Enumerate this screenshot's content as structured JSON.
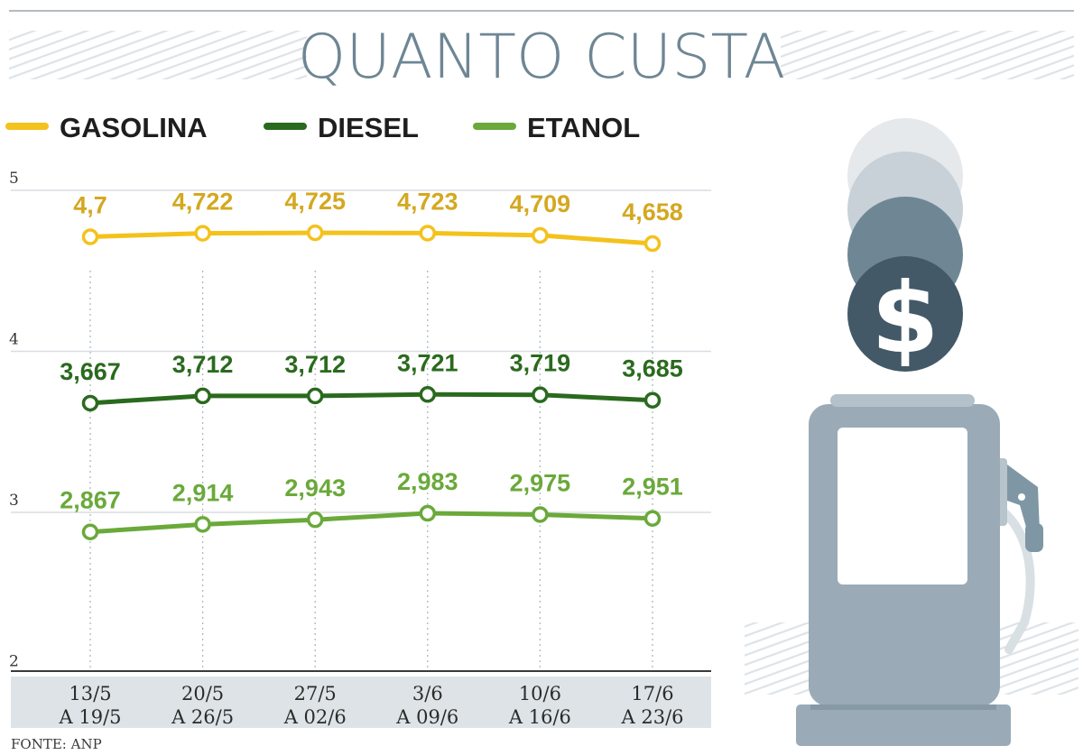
{
  "header": {
    "title": "QUANTO CUSTA"
  },
  "legend": [
    {
      "name": "GASOLINA",
      "color": "#f3c21c"
    },
    {
      "name": "DIESEL",
      "color": "#2a6a1e"
    },
    {
      "name": "ETANOL",
      "color": "#6aa93a"
    }
  ],
  "footer": {
    "source": "FONTE: ANP"
  },
  "illustration": {
    "icons": [
      "coin-stack-icon",
      "dollar-sign-icon",
      "fuel-pump-icon"
    ]
  },
  "chart_data": {
    "type": "line",
    "title": "QUANTO CUSTA",
    "categories": [
      [
        "13/5",
        "A 19/5"
      ],
      [
        "20/5",
        "A 26/5"
      ],
      [
        "27/5",
        "A 02/6"
      ],
      [
        "3/6",
        "A 09/6"
      ],
      [
        "10/6",
        "A 16/6"
      ],
      [
        "17/6",
        "A 23/6"
      ]
    ],
    "y_ticks": [
      "5",
      "4",
      "3",
      "2"
    ],
    "ylim": [
      2,
      5
    ],
    "grid": true,
    "legend_position": "top-left",
    "series": [
      {
        "name": "GASOLINA",
        "color": "#f3c21c",
        "label_color": "#d4a820",
        "values": [
          4.7,
          4.722,
          4.725,
          4.723,
          4.709,
          4.658
        ],
        "labels": [
          "4,7",
          "4,722",
          "4,725",
          "4,723",
          "4,709",
          "4,658"
        ]
      },
      {
        "name": "DIESEL",
        "color": "#2a6a1e",
        "label_color": "#2a6a1e",
        "values": [
          3.667,
          3.712,
          3.712,
          3.721,
          3.719,
          3.685
        ],
        "labels": [
          "3,667",
          "3,712",
          "3,712",
          "3,721",
          "3,719",
          "3,685"
        ]
      },
      {
        "name": "ETANOL",
        "color": "#6aa93a",
        "label_color": "#6aa93a",
        "values": [
          2.867,
          2.914,
          2.943,
          2.983,
          2.975,
          2.951
        ],
        "labels": [
          "2,867",
          "2,914",
          "2,943",
          "2,983",
          "2,975",
          "2,951"
        ]
      }
    ]
  }
}
